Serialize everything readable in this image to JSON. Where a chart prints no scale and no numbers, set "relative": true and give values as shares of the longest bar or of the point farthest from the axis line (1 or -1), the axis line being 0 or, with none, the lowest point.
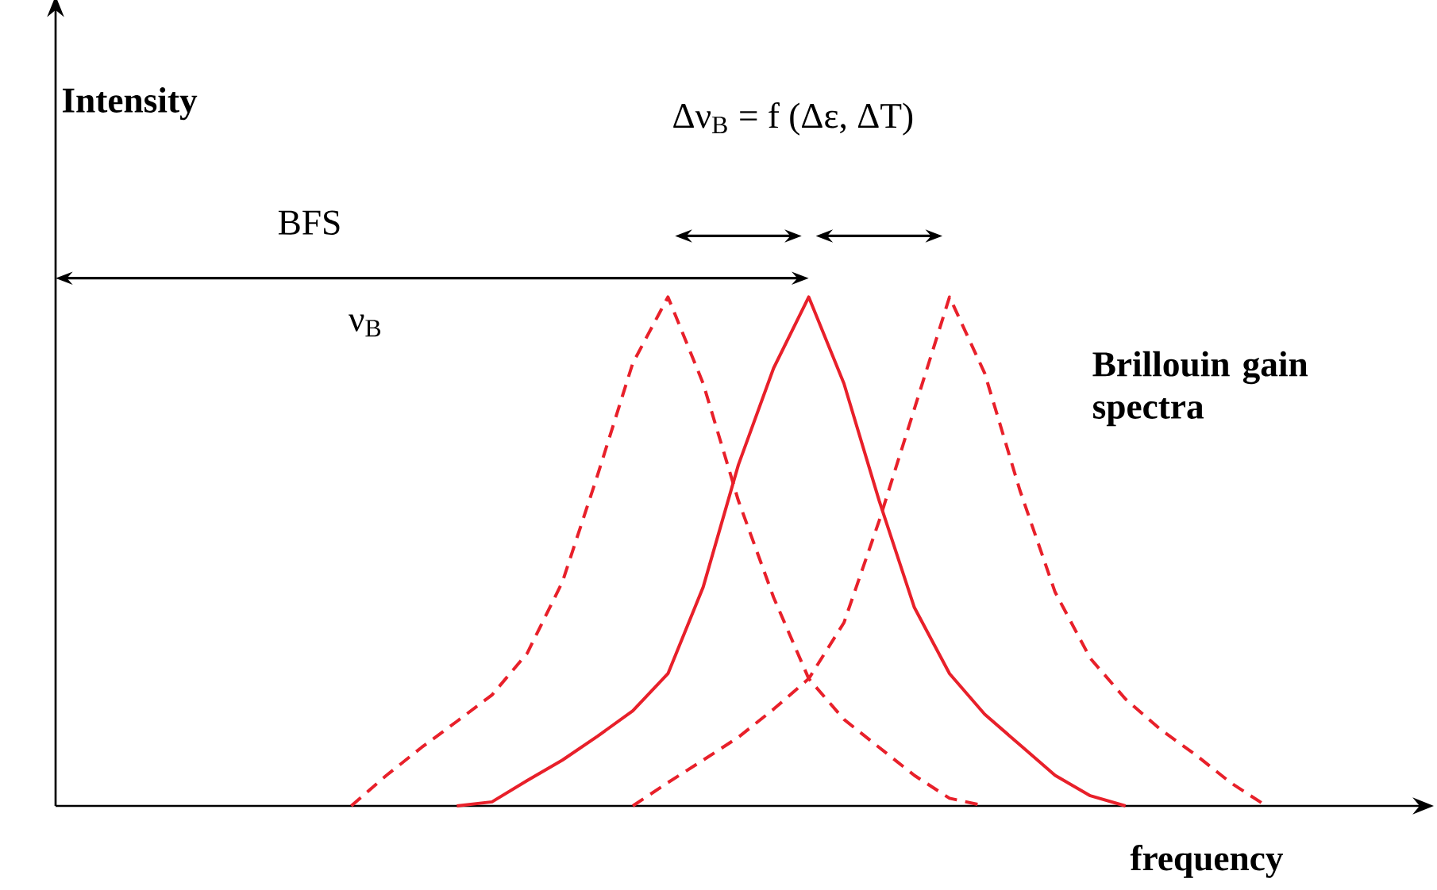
{
  "chart_data": {
    "type": "line",
    "relative": true,
    "xlabel": "frequency",
    "annotations": [
      "BFS",
      "ν$_{B}$",
      "Δν$_{B}$ = f (Δε,  ΔT)",
      "Brillouin gain spectra",
      "Intensity"
    ],
    "categories": [
      null,
      null,
      null,
      null,
      null,
      null,
      null,
      null,
      null,
      null,
      null,
      null,
      null,
      null,
      null,
      null,
      null,
      null,
      null,
      null,
      null,
      null,
      null,
      null,
      null,
      null,
      null
    ],
    "series": [
      {
        "color": "#e8202a",
        "line_style": "dashed",
        "values": [
          0,
          0.06,
          0.115,
          0.166,
          0.218,
          0.3,
          0.44,
          0.65,
          0.87,
          1,
          0.83,
          0.6,
          0.41,
          0.25,
          0.17,
          0.115,
          0.06,
          0.015,
          0,
          null,
          null,
          null,
          null,
          null,
          null,
          null,
          null
        ]
      },
      {
        "color": "#e8202a",
        "line_style": "solid",
        "values": [
          null,
          null,
          null,
          0,
          0.008,
          0.05,
          0.09,
          0.137,
          0.187,
          0.26,
          0.43,
          0.67,
          0.86,
          1,
          0.83,
          0.6,
          0.39,
          0.26,
          0.18,
          0.12,
          0.06,
          0.02,
          0,
          null,
          null,
          null,
          null
        ]
      },
      {
        "color": "#e8202a",
        "line_style": "dashed",
        "values": [
          null,
          null,
          null,
          null,
          null,
          null,
          null,
          null,
          0,
          0.046,
          0.09,
          0.135,
          0.19,
          0.25,
          0.36,
          0.56,
          0.78,
          1,
          0.85,
          0.62,
          0.42,
          0.29,
          0.21,
          0.15,
          0.1,
          0.045,
          0
        ]
      }
    ]
  }
}
